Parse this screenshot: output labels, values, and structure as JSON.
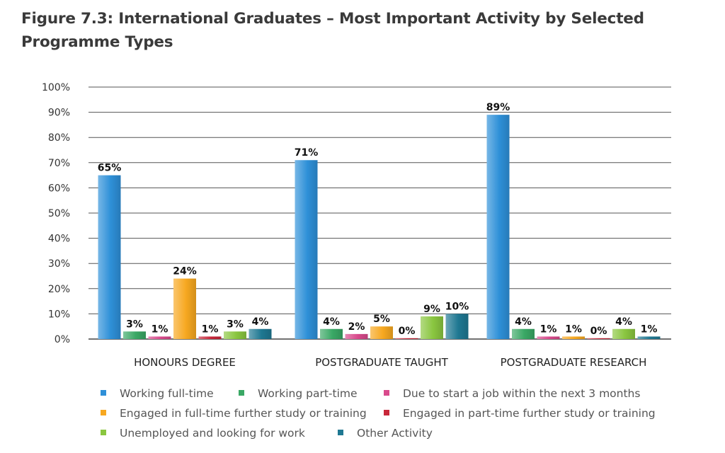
{
  "chart_data": {
    "type": "bar",
    "title": "Figure 7.3:  International Graduates – Most Important Activity by Selected Programme Types",
    "categories": [
      "HONOURS DEGREE",
      "POSTGRADUATE TAUGHT",
      "POSTGRADUATE RESEARCH"
    ],
    "series": [
      {
        "name": "Working full-time",
        "values": [
          65,
          71,
          89
        ],
        "labels": [
          "65%",
          "71%",
          "89%"
        ],
        "color": "#2e90d8"
      },
      {
        "name": "Working part-time",
        "values": [
          3,
          4,
          4
        ],
        "labels": [
          "3%",
          "4%",
          "4%"
        ],
        "color": "#3aa865"
      },
      {
        "name": "Due to start a job within the next 3 months",
        "values": [
          1,
          2,
          1
        ],
        "labels": [
          "1%",
          "2%",
          "1%"
        ],
        "color": "#d94a8c"
      },
      {
        "name": "Engaged in full-time further study or training",
        "values": [
          24,
          5,
          1
        ],
        "labels": [
          "24%",
          "5%",
          "1%"
        ],
        "color": "#f7a820"
      },
      {
        "name": "Engaged in part-time further study or training",
        "values": [
          1,
          0,
          0
        ],
        "labels": [
          "1%",
          "0%",
          "0%"
        ],
        "color": "#c8273a"
      },
      {
        "name": "Unemployed and looking for work",
        "values": [
          3,
          9,
          4
        ],
        "labels": [
          "3%",
          "9%",
          "4%"
        ],
        "color": "#8ac640"
      },
      {
        "name": "Other Activity",
        "values": [
          4,
          10,
          1
        ],
        "labels": [
          "4%",
          "10%",
          "1%"
        ],
        "color": "#1f7892"
      }
    ],
    "y_ticks": [
      "0%",
      "10%",
      "20%",
      "30%",
      "40%",
      "50%",
      "60%",
      "70%",
      "80%",
      "90%",
      "100%"
    ],
    "ylim": [
      0,
      100
    ],
    "grid": true,
    "legend_position": "bottom"
  }
}
